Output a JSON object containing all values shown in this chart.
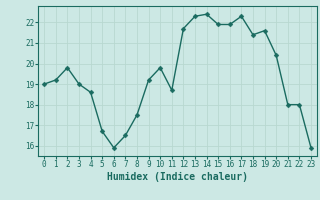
{
  "x": [
    0,
    1,
    2,
    3,
    4,
    5,
    6,
    7,
    8,
    9,
    10,
    11,
    12,
    13,
    14,
    15,
    16,
    17,
    18,
    19,
    20,
    21,
    22,
    23
  ],
  "y": [
    19.0,
    19.2,
    19.8,
    19.0,
    18.6,
    16.7,
    15.9,
    16.5,
    17.5,
    19.2,
    19.8,
    18.7,
    21.7,
    22.3,
    22.4,
    21.9,
    21.9,
    22.3,
    21.4,
    21.6,
    20.4,
    18.0,
    18.0,
    15.9
  ],
  "xlabel": "Humidex (Indice chaleur)",
  "ylabel": "",
  "bg_color": "#cce8e4",
  "line_color": "#1a6b60",
  "marker": "D",
  "marker_size": 2.5,
  "grid_color": "#b8d8d0",
  "ylim": [
    15.5,
    22.8
  ],
  "yticks": [
    16,
    17,
    18,
    19,
    20,
    21,
    22
  ],
  "xticks": [
    0,
    1,
    2,
    3,
    4,
    5,
    6,
    7,
    8,
    9,
    10,
    11,
    12,
    13,
    14,
    15,
    16,
    17,
    18,
    19,
    20,
    21,
    22,
    23
  ],
  "tick_fontsize": 5.5,
  "xlabel_fontsize": 7.0,
  "tick_color": "#1a6b60",
  "linewidth": 1.0
}
